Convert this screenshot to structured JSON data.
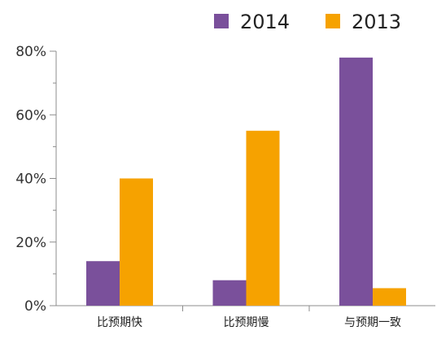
{
  "chart_data": {
    "type": "bar",
    "categories": [
      "比预期快",
      "比预期慢",
      "与预期一致"
    ],
    "series": [
      {
        "name": "2014",
        "values": [
          14,
          8,
          78
        ],
        "color": "#7a509b"
      },
      {
        "name": "2013",
        "values": [
          40,
          55,
          5.5
        ],
        "color": "#f6a200"
      }
    ],
    "title": "",
    "xlabel": "",
    "ylabel": "",
    "ylim": [
      0,
      80
    ],
    "yticks": [
      {
        "value": 0,
        "label": "0%"
      },
      {
        "value": 20,
        "label": "20%"
      },
      {
        "value": 40,
        "label": "40%"
      },
      {
        "value": 60,
        "label": "60%"
      },
      {
        "value": 80,
        "label": "80%"
      }
    ],
    "minor_ticks": [
      10,
      30,
      50,
      70
    ],
    "grid": false,
    "legend_position": "top-right"
  }
}
